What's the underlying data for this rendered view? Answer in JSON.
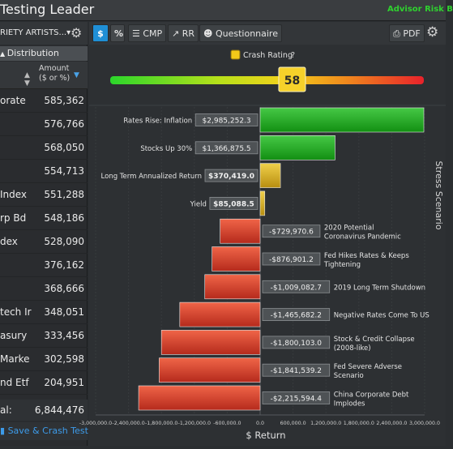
{
  "titlebar": {
    "title": "Testing Leader",
    "badge": "Advisor Risk B"
  },
  "left": {
    "dropdown": "RIETY ARTISTS...",
    "section": "Distribution",
    "header": {
      "amount": "Amount",
      "unit": "($ or %)"
    },
    "rows": [
      {
        "name": "orate",
        "amount": "585,362"
      },
      {
        "name": "",
        "amount": "576,766"
      },
      {
        "name": "",
        "amount": "568,050"
      },
      {
        "name": "",
        "amount": "554,713"
      },
      {
        "name": "Index",
        "amount": "551,288"
      },
      {
        "name": "rp Bd",
        "amount": "548,186"
      },
      {
        "name": "dex",
        "amount": "528,090"
      },
      {
        "name": "",
        "amount": "376,162"
      },
      {
        "name": "",
        "amount": "368,666"
      },
      {
        "name": "tech Ir",
        "amount": "348,051"
      },
      {
        "name": "asury",
        "amount": "333,456"
      },
      {
        "name": "Marke",
        "amount": "302,598"
      },
      {
        "name": "nd Etf",
        "amount": "204,951"
      }
    ],
    "total_label": "al:",
    "total_value": "6,844,476",
    "save_button": "Save & Crash Test"
  },
  "toolbar": {
    "dollar": "$",
    "percent": "%",
    "cmp": "CMP",
    "rr": "RR",
    "questionnaire": "Questionnaire",
    "pdf": "PDF"
  },
  "crash": {
    "label": "Crash Rating",
    "value": "58",
    "gauge_fraction": 0.58,
    "swatch_color": "#f2c919"
  },
  "chart_data": {
    "type": "bar",
    "orientation": "horizontal",
    "xlabel": "$ Return",
    "ylabel": "Stress Scenario",
    "xlim": [
      -3000000,
      3000000
    ],
    "x_ticks": [
      "-3,000,000.0",
      "-2,400,000.0",
      "-1,800,000.0",
      "-1,200,000.0",
      "-600,000.0",
      "0.0",
      "600,000.0",
      "1,200,000.0",
      "1,800,000.0",
      "2,400,000.0",
      "3,000,000.0"
    ],
    "tick_values": [
      -3000000,
      -2400000,
      -1800000,
      -1200000,
      -600000,
      0,
      600000,
      1200000,
      1800000,
      2400000,
      3000000
    ],
    "categories": [
      "Rates Rise: Inflation",
      "Stocks Up 30%",
      "Long Term Annualized Return",
      "Yield",
      "2020 Potential Coronavirus Pandemic",
      "Fed Hikes Rates & Keeps Tightening",
      "2019 Long Term Shutdown",
      "Negative Rates Come To US",
      "Stock & Credit Collapse (2008-like)",
      "Fed Severe Adverse Scenario",
      "China Corporate Debt Implodes"
    ],
    "values": [
      2985252.3,
      1366875.5,
      370419.0,
      85088.5,
      -729970.6,
      -876901.2,
      -1009082.7,
      -1465682.2,
      -1800103.0,
      -1841539.2,
      -2215594.4
    ],
    "value_labels": [
      "$2,985,252.3",
      "$1,366,875.5",
      "$370,419.0",
      "$85,088.5",
      "-$729,970.6",
      "-$876,901.2",
      "-$1,009,082.7",
      "-$1,465,682.2",
      "-$1,800,103.0",
      "-$1,841,539.2",
      "-$2,215,594.4"
    ],
    "bar_colors": [
      "#1fa51f",
      "#1fa51f",
      "#d9b21c",
      "#d9b21c",
      "#d8432d",
      "#d8432d",
      "#d8432d",
      "#d8432d",
      "#d8432d",
      "#d8432d",
      "#d8432d"
    ],
    "grid": true,
    "legend": "none"
  }
}
